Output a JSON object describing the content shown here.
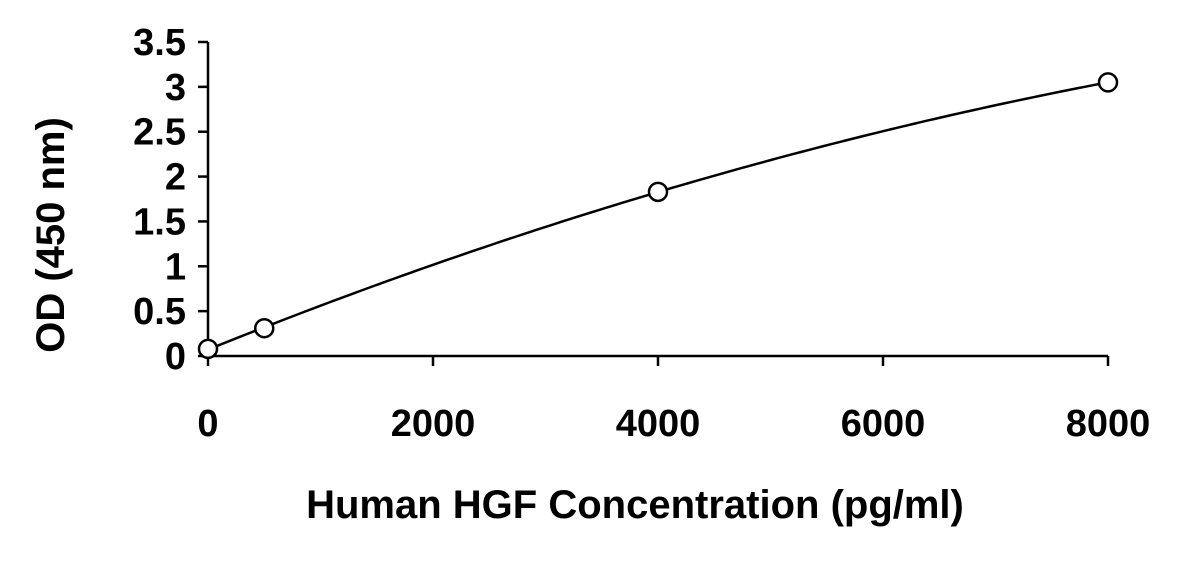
{
  "chart_data": {
    "type": "scatter",
    "xlabel": "Human HGF Concentration (pg/ml)",
    "ylabel": "OD (450 nm)",
    "xlim": [
      0,
      8000
    ],
    "ylim": [
      0,
      3.5
    ],
    "x_ticks": [
      "0",
      "2000",
      "4000",
      "6000",
      "8000"
    ],
    "y_ticks": [
      "0",
      "0.5",
      "1",
      "1.5",
      "2",
      "2.5",
      "3",
      "3.5"
    ],
    "grid": false,
    "fit_line": "smooth curve",
    "series": [
      {
        "points": [
          {
            "x": 0,
            "y": 0.08
          },
          {
            "x": 500,
            "y": 0.31
          },
          {
            "x": 4000,
            "y": 1.83
          },
          {
            "x": 8000,
            "y": 3.05
          }
        ]
      }
    ]
  }
}
